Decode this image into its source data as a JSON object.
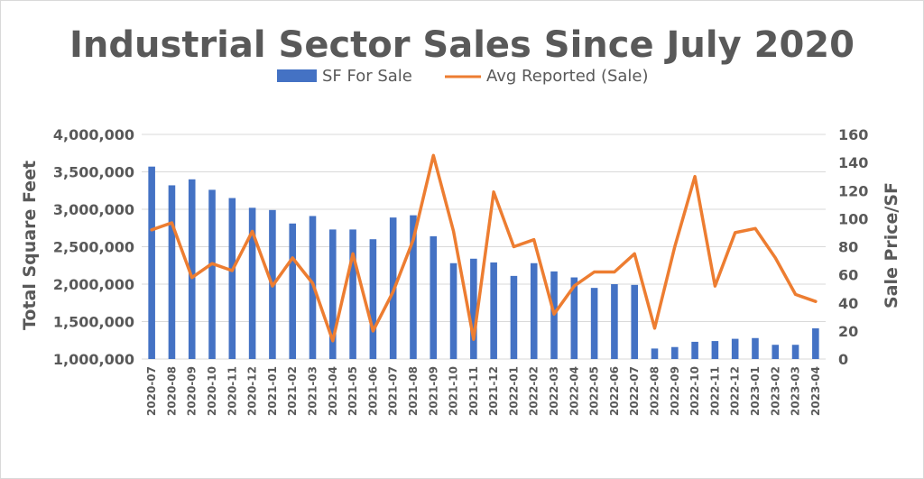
{
  "chart_data": {
    "type": "bar+line",
    "title": "Industrial Sector Sales Since July 2020",
    "categories": [
      "2020-07",
      "2020-08",
      "2020-09",
      "2020-10",
      "2020-11",
      "2020-12",
      "2021-01",
      "2021-02",
      "2021-03",
      "2021-04",
      "2021-05",
      "2021-06",
      "2021-07",
      "2021-08",
      "2021-09",
      "2021-10",
      "2021-11",
      "2021-12",
      "2022-01",
      "2022-02",
      "2022-03",
      "2022-04",
      "2022-05",
      "2022-06",
      "2022-07",
      "2022-08",
      "2022-09",
      "2022-10",
      "2022-11",
      "2022-12",
      "2023-01",
      "2023-02",
      "2023-03",
      "2023-04"
    ],
    "series": [
      {
        "name": "SF For Sale",
        "type": "bar",
        "axis": "left",
        "color": "#4472C4",
        "values": [
          3570000,
          3320000,
          3400000,
          3260000,
          3150000,
          3020000,
          2990000,
          2810000,
          2910000,
          2730000,
          2730000,
          2600000,
          2890000,
          2920000,
          2640000,
          2280000,
          2340000,
          2290000,
          2110000,
          2280000,
          2170000,
          2090000,
          1950000,
          2000000,
          1990000,
          1140000,
          1160000,
          1230000,
          1240000,
          1270000,
          1280000,
          1190000,
          1190000,
          1410000
        ]
      },
      {
        "name": "Avg Reported (Sale)",
        "type": "line",
        "axis": "right",
        "color": "#ED7D31",
        "values": [
          92,
          97,
          58,
          68,
          63,
          91,
          52,
          72,
          54,
          13,
          75,
          20,
          48,
          85,
          145,
          91,
          14,
          119,
          80,
          85,
          32,
          52,
          62,
          62,
          75,
          22,
          80,
          130,
          52,
          90,
          93,
          72,
          46,
          41
        ]
      }
    ],
    "y_left": {
      "label": "Total Square Feet",
      "min": 1000000,
      "max": 4000000,
      "ticks": [
        1000000,
        1500000,
        2000000,
        2500000,
        3000000,
        3500000,
        4000000
      ],
      "tick_labels": [
        "1,000,000",
        "1,500,000",
        "2,000,000",
        "2,500,000",
        "3,000,000",
        "3,500,000",
        "4,000,000"
      ]
    },
    "y_right": {
      "label": "Sale Price/SF",
      "min": 0,
      "max": 160,
      "ticks": [
        0,
        20,
        40,
        60,
        80,
        100,
        120,
        140,
        160
      ],
      "tick_labels": [
        "0",
        "20",
        "40",
        "60",
        "80",
        "100",
        "120",
        "140",
        "160"
      ]
    },
    "grid": true,
    "legend_position": "top"
  }
}
